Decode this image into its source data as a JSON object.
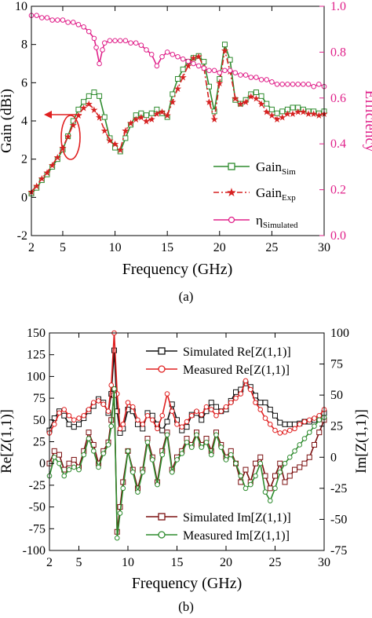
{
  "chart_data": [
    {
      "type": "line",
      "caption": "(a)",
      "xlabel": "Frequency (GHz)",
      "ylabel": "Gain (dBi)",
      "y2label": "Efficiency",
      "xlim": [
        2,
        30
      ],
      "ylim": [
        -2,
        10
      ],
      "y2lim": [
        0.0,
        1.0
      ],
      "xticks": [
        2,
        5,
        10,
        15,
        20,
        25,
        30
      ],
      "yticks": [
        -2,
        0,
        2,
        4,
        6,
        8,
        10
      ],
      "y2ticks": [
        "0.0",
        "0.2",
        "0.4",
        "0.6",
        "0.8",
        "1.0"
      ],
      "grid": false,
      "legend_position": "bottom-right",
      "series": [
        {
          "legend_main": "Gain",
          "legend_sub": "Sim",
          "color": "#2e8b2e",
          "marker": "square",
          "dash": "solid",
          "axis": "left",
          "x": [
            2,
            2.5,
            3,
            3.5,
            4,
            4.5,
            5,
            5.5,
            6,
            6.5,
            7,
            7.5,
            8,
            8.5,
            9,
            9.5,
            10,
            10.5,
            11,
            11.5,
            12,
            12.5,
            13,
            13.5,
            14,
            14.5,
            15,
            15.5,
            16,
            16.5,
            17,
            17.5,
            18,
            18.5,
            19,
            19.5,
            20,
            20.5,
            21,
            21.5,
            22,
            22.5,
            23,
            23.5,
            24,
            24.5,
            25,
            25.5,
            26,
            26.5,
            27,
            27.5,
            28,
            28.5,
            29,
            29.5,
            30
          ],
          "y": [
            0.2,
            0.5,
            0.9,
            1.2,
            1.6,
            2.0,
            2.5,
            3.2,
            4.0,
            4.6,
            5.0,
            5.3,
            5.5,
            5.3,
            4.2,
            3.1,
            2.6,
            2.4,
            3.1,
            3.8,
            4.3,
            4.4,
            4.3,
            4.4,
            4.6,
            4.4,
            4.2,
            5.4,
            6.2,
            6.7,
            7.1,
            7.3,
            7.4,
            7.1,
            5.8,
            4.5,
            6.2,
            8.0,
            7.2,
            5.1,
            4.9,
            5.1,
            5.4,
            5.5,
            5.3,
            4.9,
            4.6,
            4.4,
            4.5,
            4.6,
            4.7,
            4.7,
            4.6,
            4.5,
            4.5,
            4.4,
            4.5
          ]
        },
        {
          "legend_main": "Gain",
          "legend_sub": "Exp",
          "color": "#d62020",
          "marker": "star",
          "dash": "dashdot",
          "axis": "left",
          "x": [
            2,
            2.5,
            3,
            3.5,
            4,
            4.5,
            5,
            5.5,
            6,
            6.5,
            7,
            7.5,
            8,
            8.5,
            9,
            9.5,
            10,
            10.5,
            11,
            11.5,
            12,
            12.5,
            13,
            13.5,
            14,
            14.5,
            15,
            15.5,
            16,
            16.5,
            17,
            17.5,
            18,
            18.5,
            19,
            19.5,
            20,
            20.5,
            21,
            21.5,
            22,
            22.5,
            23,
            23.5,
            24,
            24.5,
            25,
            25.5,
            26,
            26.5,
            27,
            27.5,
            28,
            28.5,
            29,
            29.5,
            30
          ],
          "y": [
            0.3,
            0.6,
            1.0,
            1.3,
            1.7,
            2.1,
            2.6,
            3.2,
            3.8,
            4.3,
            4.7,
            4.9,
            4.6,
            4.2,
            3.5,
            3.0,
            2.8,
            2.5,
            3.5,
            3.9,
            4.1,
            4.2,
            4.0,
            4.1,
            4.4,
            4.5,
            4.3,
            5.0,
            5.7,
            6.3,
            6.9,
            7.3,
            7.4,
            6.8,
            5.0,
            4.1,
            6.0,
            7.7,
            6.6,
            5.2,
            4.9,
            5.0,
            5.3,
            5.2,
            4.9,
            4.5,
            4.3,
            4.1,
            4.2,
            4.4,
            4.4,
            4.5,
            4.5,
            4.4,
            4.4,
            4.3,
            4.4
          ]
        },
        {
          "legend_main": "η",
          "legend_sub": "Simulated",
          "color": "#e0218a",
          "marker": "circle",
          "dash": "solid",
          "axis": "right",
          "x": [
            2,
            2.5,
            3,
            3.5,
            4,
            4.5,
            5,
            5.5,
            6,
            6.5,
            7,
            7.5,
            8,
            8.2,
            8.5,
            8.8,
            9,
            9.5,
            10,
            10.5,
            11,
            11.5,
            12,
            12.5,
            13,
            13.5,
            14,
            14.5,
            15,
            15.5,
            16,
            16.5,
            17,
            17.5,
            18,
            18.5,
            19,
            19.5,
            20,
            20.5,
            21,
            21.5,
            22,
            22.5,
            23,
            23.5,
            24,
            24.5,
            25,
            25.5,
            26,
            26.5,
            27,
            27.5,
            28,
            28.5,
            29,
            29.5,
            30
          ],
          "y": [
            0.96,
            0.96,
            0.95,
            0.95,
            0.94,
            0.94,
            0.94,
            0.93,
            0.93,
            0.92,
            0.91,
            0.89,
            0.86,
            0.82,
            0.75,
            0.81,
            0.84,
            0.85,
            0.85,
            0.85,
            0.85,
            0.84,
            0.84,
            0.83,
            0.81,
            0.79,
            0.74,
            0.78,
            0.8,
            0.79,
            0.78,
            0.77,
            0.76,
            0.75,
            0.74,
            0.73,
            0.72,
            0.72,
            0.71,
            0.72,
            0.72,
            0.71,
            0.7,
            0.7,
            0.69,
            0.69,
            0.68,
            0.68,
            0.67,
            0.66,
            0.66,
            0.66,
            0.66,
            0.66,
            0.66,
            0.66,
            0.65,
            0.66,
            0.65
          ]
        }
      ]
    },
    {
      "type": "line",
      "caption": "(b)",
      "xlabel": "Frequency (GHz)",
      "ylabel": "Re[Z(1,1)]",
      "y2label": "Im[Z(1,1)]",
      "xlim": [
        2,
        30
      ],
      "ylim": [
        -100,
        150
      ],
      "y2lim": [
        -75,
        100
      ],
      "xticks": [
        2,
        5,
        10,
        15,
        20,
        25,
        30
      ],
      "yticks": [
        -100,
        -75,
        -50,
        -25,
        0,
        25,
        50,
        75,
        100,
        125,
        150
      ],
      "y2ticks": [
        -75,
        -50,
        -25,
        0,
        25,
        50,
        75,
        100
      ],
      "grid": false,
      "series": [
        {
          "name": "Simulated Re[Z(1,1)]",
          "color": "#111111",
          "marker": "square",
          "axis": "left",
          "x": [
            2,
            2.5,
            3,
            3.5,
            4,
            4.5,
            5,
            5.5,
            6,
            6.5,
            7,
            7.5,
            8,
            8.3,
            8.6,
            8.9,
            9.2,
            9.5,
            10,
            10.5,
            11,
            11.5,
            12,
            12.5,
            13,
            13.5,
            14,
            14.5,
            15,
            15.5,
            16,
            16.5,
            17,
            17.5,
            18,
            18.5,
            19,
            19.5,
            20,
            20.5,
            21,
            21.5,
            22,
            22.5,
            23,
            23.5,
            24,
            24.5,
            25,
            25.5,
            26,
            26.5,
            27,
            27.5,
            28,
            28.5,
            29,
            29.5,
            30
          ],
          "y": [
            38,
            52,
            60,
            55,
            45,
            42,
            45,
            52,
            60,
            66,
            74,
            70,
            58,
            80,
            130,
            60,
            35,
            40,
            62,
            60,
            45,
            40,
            58,
            55,
            45,
            38,
            48,
            68,
            50,
            38,
            42,
            56,
            58,
            50,
            60,
            70,
            65,
            60,
            62,
            72,
            82,
            85,
            92,
            88,
            78,
            70,
            70,
            62,
            55,
            47,
            45,
            45,
            45,
            46,
            48,
            48,
            50,
            52,
            58
          ]
        },
        {
          "name": "Measured Re[Z(1,1)]",
          "color": "#e02020",
          "marker": "circle",
          "axis": "left",
          "x": [
            2,
            2.5,
            3,
            3.5,
            4,
            4.5,
            5,
            5.5,
            6,
            6.5,
            7,
            7.5,
            8,
            8.3,
            8.6,
            8.9,
            9.2,
            9.5,
            10,
            10.5,
            11,
            11.5,
            12,
            12.5,
            13,
            13.5,
            14,
            14.5,
            15,
            15.5,
            16,
            16.5,
            17,
            17.5,
            18,
            18.5,
            19,
            19.5,
            20,
            20.5,
            21,
            21.5,
            22,
            22.5,
            23,
            23.5,
            24,
            24.5,
            25,
            25.5,
            26,
            26.5,
            27,
            27.5,
            28,
            28.5,
            29,
            29.5,
            30
          ],
          "y": [
            35,
            45,
            58,
            62,
            55,
            50,
            52,
            55,
            62,
            70,
            72,
            68,
            60,
            90,
            150,
            80,
            40,
            45,
            70,
            65,
            50,
            45,
            55,
            50,
            40,
            55,
            80,
            60,
            45,
            42,
            48,
            55,
            60,
            56,
            65,
            62,
            55,
            60,
            65,
            70,
            75,
            80,
            95,
            85,
            70,
            62,
            52,
            45,
            38,
            35,
            36,
            38,
            40,
            45,
            48,
            50,
            52,
            55,
            62
          ]
        },
        {
          "name": "Simulated Im[Z(1,1)]",
          "color": "#7b1010",
          "marker": "square",
          "axis": "right",
          "x": [
            2,
            2.5,
            3,
            3.5,
            4,
            4.5,
            5,
            5.5,
            6,
            6.5,
            7,
            7.5,
            8,
            8.3,
            8.6,
            8.9,
            9.2,
            9.5,
            10,
            10.5,
            11,
            11.5,
            12,
            12.5,
            13,
            13.5,
            14,
            14.5,
            15,
            15.5,
            16,
            16.5,
            17,
            17.5,
            18,
            18.5,
            19,
            19.5,
            20,
            20.5,
            21,
            21.5,
            22,
            22.5,
            23,
            23.5,
            24,
            24.5,
            25,
            25.5,
            26,
            26.5,
            27,
            27.5,
            28,
            28.5,
            29,
            29.5,
            30
          ],
          "y": [
            -5,
            5,
            2,
            -10,
            -5,
            -2,
            -8,
            5,
            20,
            10,
            -5,
            5,
            12,
            30,
            50,
            -60,
            -40,
            -20,
            5,
            -10,
            -25,
            -10,
            15,
            0,
            -20,
            5,
            20,
            -10,
            0,
            5,
            15,
            10,
            20,
            10,
            15,
            5,
            20,
            10,
            0,
            5,
            -5,
            -20,
            -10,
            -20,
            -5,
            0,
            -15,
            -25,
            -15,
            -5,
            -20,
            -15,
            -10,
            -8,
            -5,
            0,
            10,
            20,
            30
          ]
        },
        {
          "name": "Measured Im[Z(1,1)]",
          "color": "#2e8b2e",
          "marker": "circle",
          "axis": "right",
          "x": [
            2,
            2.5,
            3,
            3.5,
            4,
            4.5,
            5,
            5.5,
            6,
            6.5,
            7,
            7.5,
            8,
            8.3,
            8.6,
            8.9,
            9.2,
            9.5,
            10,
            10.5,
            11,
            11.5,
            12,
            12.5,
            13,
            13.5,
            14,
            14.5,
            15,
            15.5,
            16,
            16.5,
            17,
            17.5,
            18,
            18.5,
            19,
            19.5,
            20,
            20.5,
            21,
            21.5,
            22,
            22.5,
            23,
            23.5,
            24,
            24.5,
            25,
            25.5,
            26,
            26.5,
            27,
            27.5,
            28,
            28.5,
            29,
            29.5,
            30
          ],
          "y": [
            -15,
            0,
            -5,
            -15,
            -10,
            -8,
            -10,
            2,
            15,
            5,
            -8,
            3,
            10,
            25,
            55,
            -65,
            -45,
            -25,
            5,
            -12,
            -28,
            -12,
            12,
            -2,
            -22,
            2,
            18,
            -12,
            -2,
            3,
            12,
            8,
            18,
            8,
            12,
            2,
            18,
            8,
            -2,
            2,
            -5,
            -15,
            -25,
            -22,
            -15,
            -5,
            -28,
            -35,
            -25,
            -12,
            -5,
            0,
            5,
            10,
            15,
            20,
            25,
            30,
            32
          ]
        }
      ]
    }
  ]
}
